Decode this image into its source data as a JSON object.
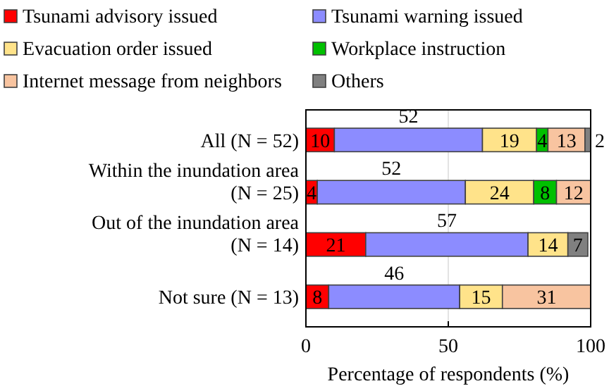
{
  "chart_data": {
    "type": "bar",
    "orientation": "horizontal",
    "stacked": true,
    "xlabel": "Percentage of respondents (%)",
    "categories": [
      "All (N = 52)",
      "Within the inundation area\n(N = 25)",
      "Out of the inundation area\n(N = 14)",
      "Not sure (N = 13)"
    ],
    "series": [
      {
        "name": "Tsunami advisory issued",
        "color": "#ff0000",
        "values": [
          10,
          4,
          21,
          8
        ]
      },
      {
        "name": "Tsunami warning issued",
        "color": "#8c8cff",
        "values": [
          52,
          52,
          57,
          46
        ]
      },
      {
        "name": "Evacuation order issued",
        "color": "#ffe38a",
        "values": [
          19,
          24,
          14,
          15
        ]
      },
      {
        "name": "Workplace instruction",
        "color": "#00c000",
        "values": [
          4,
          8,
          null,
          null
        ]
      },
      {
        "name": "Internet message from neighbors",
        "color": "#f8c4a0",
        "values": [
          13,
          12,
          null,
          31
        ]
      },
      {
        "name": "Others",
        "color": "#808080",
        "values": [
          2,
          null,
          7,
          null
        ]
      }
    ],
    "data_labels": true,
    "xlim": [
      0,
      100
    ],
    "xticks": [
      0,
      50,
      100
    ],
    "grid": "x",
    "legend": "top"
  }
}
